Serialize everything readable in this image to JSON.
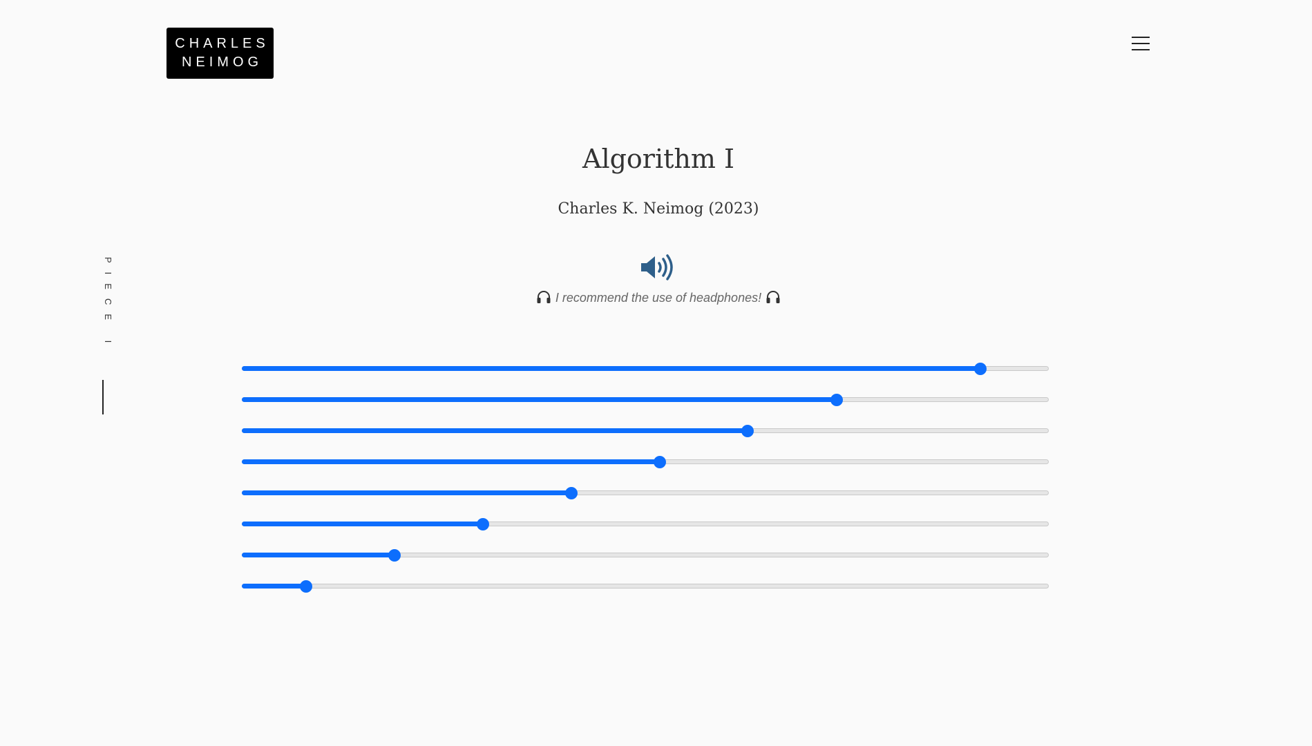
{
  "header": {
    "logo_line1": "CHARLES",
    "logo_line2": "NEIMOG",
    "menu_icon": "hamburger-menu-icon"
  },
  "side": {
    "label": "PIECE I"
  },
  "main": {
    "title": "Algorithm I",
    "subtitle": "Charles K. Neimog (2023)",
    "speaker_icon": "volume-up-icon",
    "headphones_icon": "headphones-icon",
    "note": "I recommend the use of headphones!"
  },
  "sliders": {
    "values": [
      0.915,
      0.737,
      0.627,
      0.518,
      0.408,
      0.299,
      0.189,
      0.08
    ]
  },
  "colors": {
    "accent": "#0d6efd",
    "speaker": "#2e5f8a",
    "logo_bg": "#000000",
    "background": "#fafafa"
  }
}
